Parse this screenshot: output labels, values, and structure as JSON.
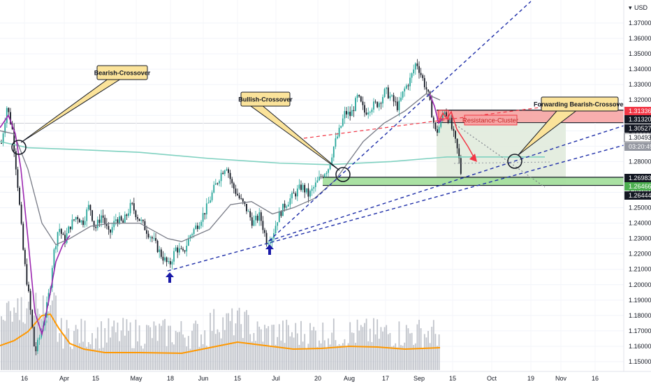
{
  "chart_data": {
    "type": "candlestick",
    "title": "",
    "currency_label": "USD",
    "y_axis": {
      "min": 1.145,
      "max": 1.384,
      "ticks": [
        "1.37000",
        "1.36000",
        "1.35000",
        "1.34000",
        "1.33000",
        "1.32000",
        "1.31000",
        "1.30000",
        "1.29000",
        "1.28000",
        "1.27000",
        "1.26000",
        "1.25000",
        "1.24000",
        "1.23000",
        "1.22000",
        "1.21000",
        "1.20000",
        "1.19000",
        "1.18000",
        "1.17000",
        "1.16000",
        "1.15000"
      ],
      "tick_values": [
        1.37,
        1.36,
        1.35,
        1.34,
        1.33,
        1.32,
        1.31,
        1.3,
        1.29,
        1.28,
        1.27,
        1.26,
        1.25,
        1.24,
        1.23,
        1.22,
        1.21,
        1.2,
        1.19,
        1.18,
        1.17,
        1.16,
        1.15
      ]
    },
    "x_axis": {
      "ticks": [
        "16",
        "Apr",
        "15",
        "May",
        "18",
        "Jun",
        "15",
        "Jul",
        "20",
        "Aug",
        "17",
        "Sep",
        "15",
        "Oct",
        "19",
        "Nov",
        "16"
      ]
    },
    "price_labels": [
      {
        "value": 1.31336,
        "text": "1.31336",
        "bg": "#f23645",
        "fg": "#ffffff"
      },
      {
        "value": 1.3132,
        "text": "1.31320",
        "bg": "#131722",
        "fg": "#ffffff"
      },
      {
        "value": 1.30527,
        "text": "1.30527",
        "bg": "#131722",
        "fg": "#ffffff"
      },
      {
        "value": 1.30493,
        "text": "1.30493",
        "bg": "#ffffff",
        "fg": "#131722"
      },
      {
        "value": 1.2988,
        "text": "03:20:49",
        "bg": "#9598a1",
        "fg": "#ffffff"
      },
      {
        "value": 1.26983,
        "text": "1.26983",
        "bg": "#131722",
        "fg": "#ffffff"
      },
      {
        "value": 1.26466,
        "text": "1.26466",
        "bg": "#4caf50",
        "fg": "#ffffff"
      },
      {
        "value": 1.26444,
        "text": "1.26444",
        "bg": "#131722",
        "fg": "#ffffff"
      }
    ],
    "annotations": [
      {
        "text": "Bearish-Crossover"
      },
      {
        "text": "Bullish-Crossover"
      },
      {
        "text": "Forwarding Bearish-Crossover"
      },
      {
        "text": "Resistance-Cluster"
      }
    ],
    "zones": {
      "resistance": [
        1.3132,
        1.31336
      ],
      "support": [
        1.26466,
        1.26983
      ]
    },
    "colors": {
      "up": "#26a69a",
      "down": "#131722",
      "resistance": "#f23645",
      "support": "#4caf50",
      "trendline": "#1e2ea8",
      "ma_fast": "#9c27b0",
      "ma_slow": "#787b86",
      "ma_long": "#7fd1c0",
      "volume_ma": "#ff9800"
    }
  }
}
